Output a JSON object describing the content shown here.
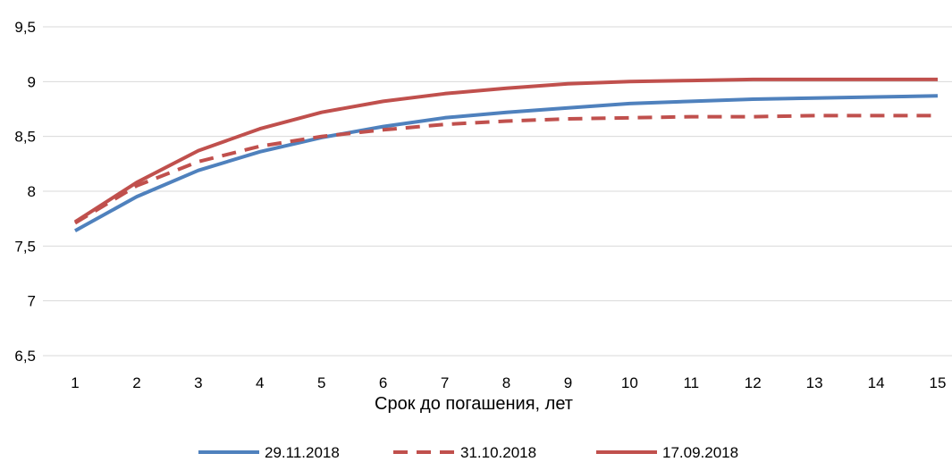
{
  "chart_data": {
    "type": "line",
    "xlabel": "Срок до погашения, лет",
    "ylabel": "",
    "x": [
      1,
      2,
      3,
      4,
      5,
      6,
      7,
      8,
      9,
      10,
      11,
      12,
      13,
      14,
      15
    ],
    "xticks": [
      "1",
      "2",
      "3",
      "4",
      "5",
      "6",
      "7",
      "8",
      "9",
      "10",
      "11",
      "12",
      "13",
      "14",
      "15"
    ],
    "ylim": [
      6.5,
      9.5
    ],
    "yticks": [
      "6,5",
      "7",
      "7,5",
      "8",
      "8,5",
      "9",
      "9,5"
    ],
    "ytick_values": [
      6.5,
      7,
      7.5,
      8,
      8.5,
      9,
      9.5
    ],
    "grid": true,
    "legend": "bottom",
    "series": [
      {
        "name": "29.11.2018",
        "color": "#4f81bd",
        "dash": "solid",
        "values": [
          7.64,
          7.95,
          8.19,
          8.36,
          8.49,
          8.59,
          8.67,
          8.72,
          8.76,
          8.8,
          8.82,
          8.84,
          8.85,
          8.86,
          8.87
        ]
      },
      {
        "name": "31.10.2018",
        "color": "#c0504d",
        "dash": "dashed",
        "values": [
          7.71,
          8.05,
          8.27,
          8.41,
          8.5,
          8.56,
          8.61,
          8.64,
          8.66,
          8.67,
          8.68,
          8.68,
          8.69,
          8.69,
          8.69
        ]
      },
      {
        "name": "17.09.2018",
        "color": "#c0504d",
        "dash": "solid",
        "values": [
          7.72,
          8.08,
          8.37,
          8.57,
          8.72,
          8.82,
          8.89,
          8.94,
          8.98,
          9.0,
          9.01,
          9.02,
          9.02,
          9.02,
          9.02
        ]
      }
    ]
  }
}
